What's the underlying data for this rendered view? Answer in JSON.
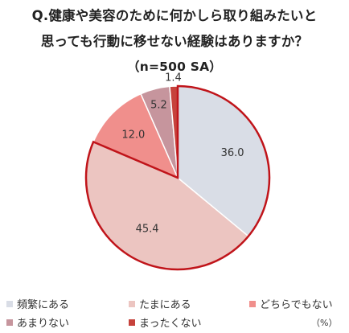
{
  "header": {
    "line1": "Q.健康や美容のために何かしら取り組みたいと",
    "line2": "思っても行動に移せない経験はありますか？",
    "line3": "（n=500 SA）"
  },
  "unit_label": "（%）",
  "colors": {
    "frequent": "#d9dde6",
    "sometimes": "#ecc5c1",
    "neither": "#f08f8c",
    "rarely": "#c6959d",
    "never": "#c6423c",
    "highlight_border": "#c0141a"
  },
  "chart_data": {
    "type": "pie",
    "title": "Q.健康や美容のために何かしら取り組みたいと思っても行動に移せない経験はありますか？",
    "subtitle": "（n=500 SA）",
    "categories": [
      "頻繁にある",
      "たまにある",
      "どちらでもない",
      "あまりない",
      "まったくない"
    ],
    "values": [
      36.0,
      45.4,
      12.0,
      5.2,
      1.4
    ],
    "value_labels": [
      "36.0",
      "45.4",
      "12.0",
      "5.2",
      "1.4"
    ],
    "highlighted": [
      "頻繁にある",
      "たまにある"
    ],
    "start_angle": "12 o'clock",
    "direction": "clockwise",
    "legend_position": "bottom",
    "unit": "%"
  }
}
